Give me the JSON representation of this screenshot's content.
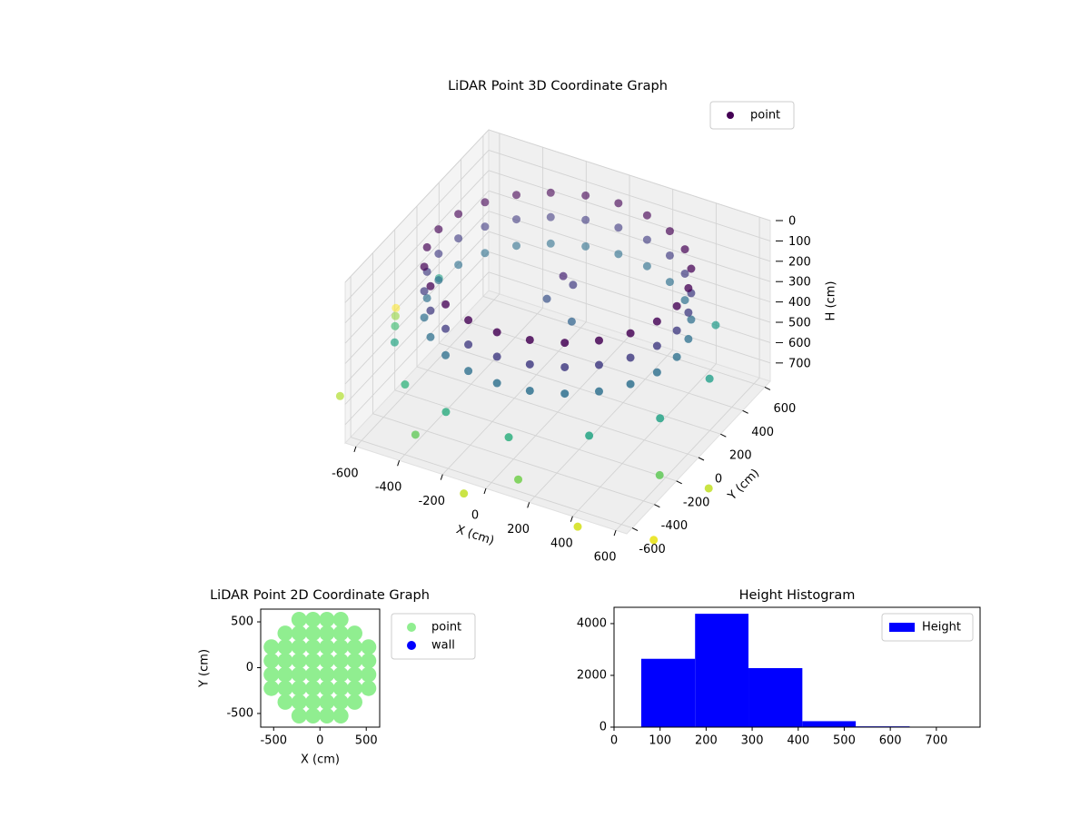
{
  "chart_data": [
    {
      "type": "scatter3d",
      "title": "LiDAR Point 3D Coordinate Graph",
      "xlabel": "X (cm)",
      "ylabel": "Y (cm)",
      "zlabel": "H (cm)",
      "xlim": [
        -650,
        650
      ],
      "ylim": [
        -650,
        650
      ],
      "zlim": [
        0,
        790
      ],
      "z_inverted": true,
      "xticks": [
        -600,
        -400,
        -200,
        0,
        200,
        400,
        600
      ],
      "yticks": [
        -600,
        -400,
        -200,
        0,
        200,
        400,
        600
      ],
      "zticks": [
        0,
        100,
        200,
        300,
        400,
        500,
        600,
        700
      ],
      "grid": true,
      "legend": "upper right",
      "colormap": "viridis",
      "series": [
        {
          "name": "point",
          "x": [
            550,
            531,
            476,
            389,
            275,
            142,
            0,
            -142,
            -275,
            -389,
            -476,
            -531,
            -550,
            -531,
            -476,
            -389,
            -275,
            -142,
            0,
            142,
            275,
            389,
            476,
            531,
            550,
            531,
            476,
            389,
            275,
            142,
            0,
            -142,
            -275,
            -389,
            -476,
            -531,
            -550,
            -531,
            -476,
            -389,
            -275,
            -142,
            0,
            142,
            275,
            389,
            476,
            531,
            550,
            531,
            476,
            389,
            275,
            142,
            0,
            -142,
            -275,
            -389,
            -476,
            -531,
            -550,
            -531,
            -476,
            -389,
            -275,
            -142,
            0,
            142,
            275,
            389,
            476,
            531,
            -600,
            -450,
            -200,
            100,
            400,
            600,
            650,
            500,
            -650,
            -700,
            -300,
            200,
            700,
            -800,
            -750,
            0,
            500,
            850,
            -900,
            800,
            0,
            -50,
            80,
            30
          ],
          "y": [
            0,
            142,
            275,
            389,
            476,
            531,
            550,
            531,
            476,
            389,
            275,
            142,
            0,
            -142,
            -275,
            -389,
            -476,
            -531,
            -550,
            -531,
            -476,
            -389,
            -275,
            -142,
            0,
            142,
            275,
            389,
            476,
            531,
            550,
            531,
            476,
            389,
            275,
            142,
            0,
            -142,
            -275,
            -389,
            -476,
            -531,
            -550,
            -531,
            -476,
            -389,
            -275,
            -142,
            0,
            142,
            275,
            389,
            476,
            531,
            550,
            531,
            476,
            389,
            275,
            142,
            0,
            -142,
            -275,
            -389,
            -476,
            -531,
            -550,
            -531,
            -476,
            -389,
            -275,
            -142,
            -300,
            -500,
            -620,
            -640,
            -500,
            -250,
            100,
            450,
            200,
            -100,
            -700,
            -750,
            -450,
            100,
            -500,
            -850,
            -800,
            -300,
            300,
            -700,
            50,
            0,
            -30,
            80
          ],
          "z": [
            80,
            80,
            80,
            80,
            80,
            80,
            80,
            80,
            80,
            80,
            80,
            80,
            80,
            80,
            80,
            80,
            80,
            80,
            80,
            80,
            80,
            80,
            80,
            80,
            200,
            200,
            200,
            200,
            200,
            200,
            200,
            200,
            200,
            200,
            200,
            200,
            200,
            200,
            200,
            200,
            200,
            200,
            200,
            200,
            200,
            200,
            200,
            200,
            330,
            330,
            330,
            330,
            330,
            330,
            330,
            330,
            330,
            330,
            330,
            330,
            330,
            330,
            330,
            330,
            330,
            330,
            330,
            330,
            330,
            330,
            330,
            330,
            480,
            520,
            500,
            510,
            480,
            470,
            460,
            450,
            470,
            550,
            600,
            620,
            600,
            650,
            680,
            700,
            720,
            700,
            760,
            740,
            150,
            250,
            300,
            200
          ]
        }
      ]
    },
    {
      "type": "scatter",
      "title": "LiDAR Point 2D Coordinate Graph",
      "xlabel": "X (cm)",
      "ylabel": "Y (cm)",
      "xlim": [
        -640,
        645
      ],
      "ylim": [
        -649,
        639
      ],
      "xticks": [
        -500,
        0,
        500
      ],
      "yticks": [
        -500,
        0,
        500
      ],
      "legend": "outside upper left",
      "series": [
        {
          "name": "point",
          "color": "#90ee90",
          "x": [
            -225,
            -75,
            75,
            225,
            -375,
            -225,
            -75,
            75,
            225,
            375,
            -525,
            -375,
            -225,
            -75,
            75,
            225,
            375,
            525,
            -525,
            -375,
            -225,
            -75,
            75,
            225,
            375,
            525,
            -525,
            -375,
            -225,
            -75,
            75,
            225,
            375,
            525,
            -525,
            -375,
            -225,
            -75,
            75,
            225,
            375,
            525,
            -375,
            -225,
            -75,
            75,
            225,
            375,
            -225,
            -75,
            75,
            225
          ],
          "y": [
            525,
            525,
            525,
            525,
            375,
            375,
            375,
            375,
            375,
            375,
            225,
            225,
            225,
            225,
            225,
            225,
            225,
            225,
            75,
            75,
            75,
            75,
            75,
            75,
            75,
            75,
            -75,
            -75,
            -75,
            -75,
            -75,
            -75,
            -75,
            -75,
            -225,
            -225,
            -225,
            -225,
            -225,
            -225,
            -225,
            -225,
            -375,
            -375,
            -375,
            -375,
            -375,
            -375,
            -525,
            -525,
            -525,
            -525
          ]
        },
        {
          "name": "wall",
          "color": "#0000ff",
          "x": [],
          "y": []
        }
      ]
    },
    {
      "type": "histogram",
      "title": "Height Histogram",
      "xlim": [
        0,
        795
      ],
      "ylim": [
        0,
        4630
      ],
      "xticks": [
        0,
        100,
        200,
        300,
        400,
        500,
        600,
        700
      ],
      "yticks": [
        0,
        2000,
        4000
      ],
      "legend": "upper right",
      "series": [
        {
          "name": "Height",
          "color": "#0000ff",
          "bins": [
            59,
            176,
            292,
            409,
            525,
            642,
            758
          ],
          "values": [
            2640,
            4380,
            2280,
            230,
            30,
            5
          ]
        }
      ]
    }
  ]
}
